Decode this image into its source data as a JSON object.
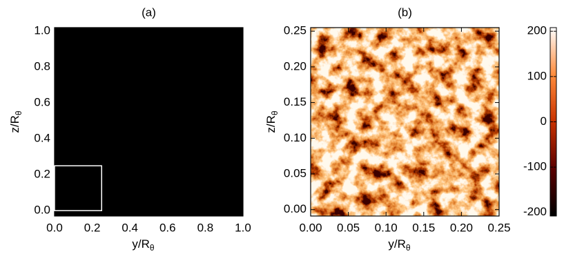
{
  "chart_data": [
    {
      "type": "heatmap",
      "title": "(a)",
      "xlabel": [
        "y/R",
        "θ"
      ],
      "ylabel": [
        "z/R",
        "θ"
      ],
      "xlim": [
        0,
        1.0
      ],
      "ylim": [
        -0.03,
        1.02
      ],
      "xticks": [
        {
          "value": 0,
          "label": "0.0"
        },
        {
          "value": 0.2,
          "label": "0.2"
        },
        {
          "value": 0.4,
          "label": "0.4"
        },
        {
          "value": 0.6,
          "label": "0.6"
        },
        {
          "value": 0.8,
          "label": "0.8"
        },
        {
          "value": 1.0,
          "label": "1.0"
        }
      ],
      "yticks": [
        {
          "value": 0,
          "label": "0.0"
        },
        {
          "value": 0.2,
          "label": "0.2"
        },
        {
          "value": 0.4,
          "label": "0.4"
        },
        {
          "value": 0.6,
          "label": "0.6"
        },
        {
          "value": 0.8,
          "label": "0.8"
        },
        {
          "value": 1.0,
          "label": "1.0"
        }
      ],
      "inset_box": {
        "x": [
          0,
          0.25
        ],
        "y": [
          0,
          0.25
        ],
        "color": "#ffffff"
      }
    },
    {
      "type": "heatmap",
      "title": "(b)",
      "xlabel": [
        "y/R",
        "θ"
      ],
      "ylabel": [
        "z/R",
        "θ"
      ],
      "xlim": [
        0,
        0.25
      ],
      "ylim": [
        -0.009,
        0.255
      ],
      "xticks": [
        {
          "value": 0,
          "label": "0.00"
        },
        {
          "value": 0.05,
          "label": "0.05"
        },
        {
          "value": 0.1,
          "label": "0.10"
        },
        {
          "value": 0.15,
          "label": "0.15"
        },
        {
          "value": 0.2,
          "label": "0.20"
        },
        {
          "value": 0.25,
          "label": "0.25"
        }
      ],
      "yticks": [
        {
          "value": 0,
          "label": "0.00"
        },
        {
          "value": 0.05,
          "label": "0.05"
        },
        {
          "value": 0.1,
          "label": "0.10"
        },
        {
          "value": 0.15,
          "label": "0.15"
        },
        {
          "value": 0.2,
          "label": "0.20"
        },
        {
          "value": 0.25,
          "label": "0.25"
        }
      ]
    }
  ],
  "colorbar": {
    "lim": [
      -208,
      208
    ],
    "ticks": [
      -200,
      -100,
      0,
      100,
      200
    ],
    "colors": [
      "#000000",
      "#5a0000",
      "#c83200",
      "#ff8c3c",
      "#ffffff"
    ]
  }
}
